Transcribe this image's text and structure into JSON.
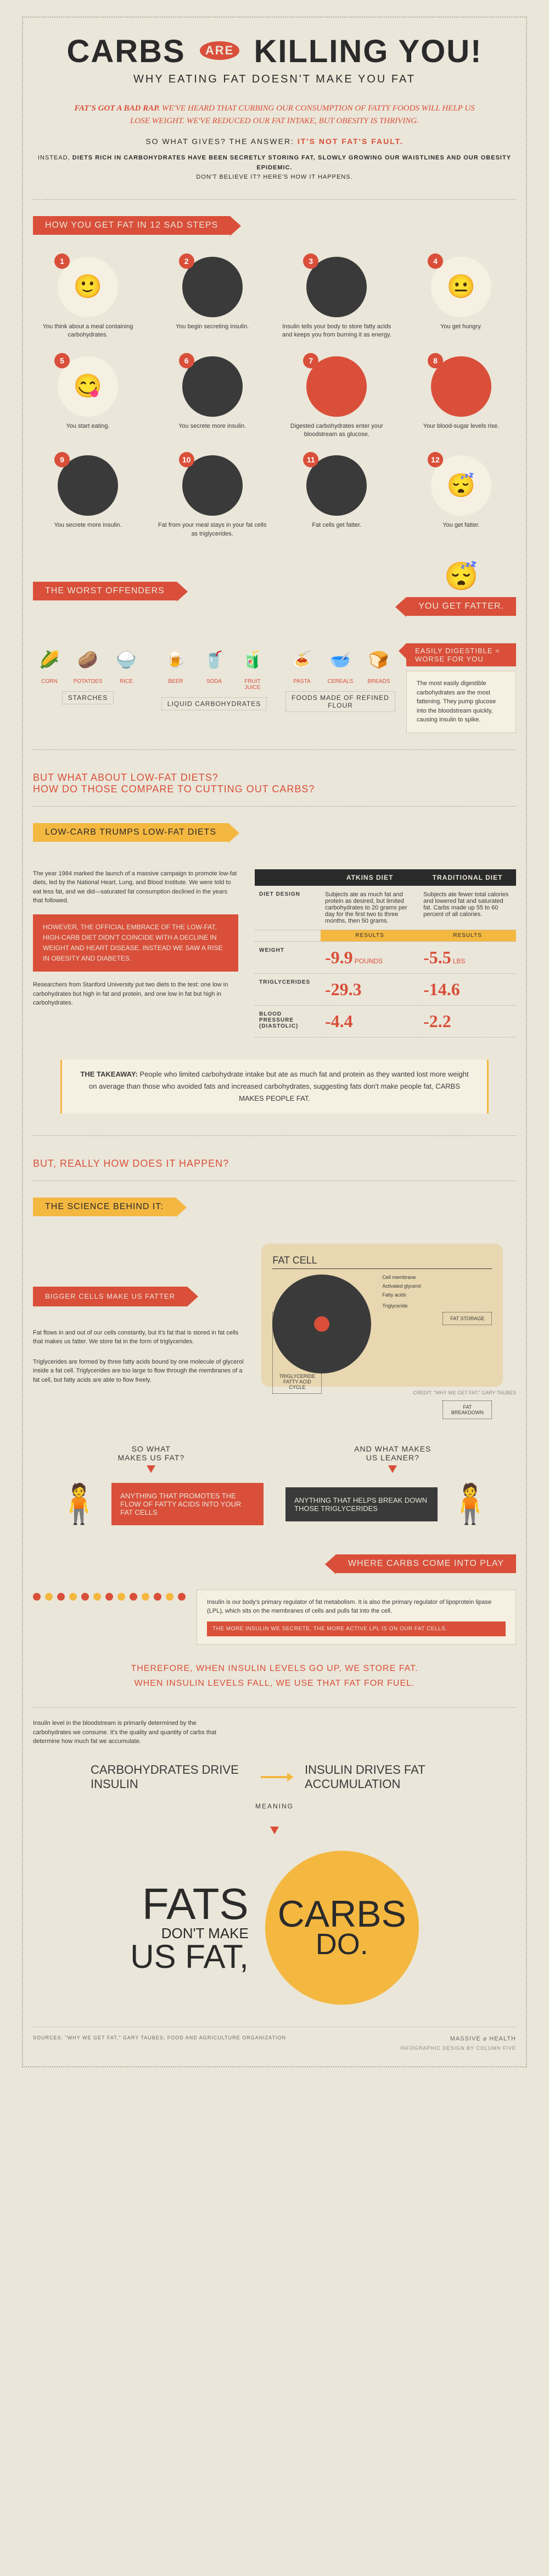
{
  "title": {
    "carbs": "CARBS",
    "are": "ARE",
    "killing": "KILLING YOU!"
  },
  "subtitle": "WHY EATING FAT DOESN'T MAKE YOU FAT",
  "intro": {
    "p1_lead": "FAT'S GOT A BAD RAP.",
    "p1": " WE'VE HEARD THAT CURBING OUR CONSUMPTION OF FATTY FOODS WILL HELP US LOSE WEIGHT. WE'VE REDUCED OUR FAT INTAKE, BUT OBESITY IS THRIVING.",
    "p2a": "SO WHAT GIVES? THE ANSWER: ",
    "p2b": "IT'S NOT FAT'S FAULT.",
    "p3a": "INSTEAD, ",
    "p3b": "DIETS RICH IN CARBOHYDRATES HAVE BEEN SECRETLY STORING FAT, SLOWLY GROWING OUR WAISTLINES AND OUR OBESITY EPIDEMIC.",
    "p3c": "DON'T BELIEVE IT? HERE'S HOW IT HAPPENS."
  },
  "steps_title": "HOW YOU GET FAT IN 12 SAD STEPS",
  "steps": [
    {
      "n": "1",
      "text": "You think about a meal containing carbohydrates.",
      "bg": "#f5f0e1",
      "emoji": "🙂"
    },
    {
      "n": "2",
      "text": "You begin secreting insulin.",
      "bg": "#3a3a3a",
      "emoji": ""
    },
    {
      "n": "3",
      "text": "Insulin tells your body to store fatty acids and keeps you from burning it as energy.",
      "bg": "#3a3a3a",
      "emoji": ""
    },
    {
      "n": "4",
      "text": "You get hungry.",
      "bg": "#f5f0e1",
      "emoji": "😐"
    },
    {
      "n": "5",
      "text": "You start eating.",
      "bg": "#f5f0e1",
      "emoji": "😋"
    },
    {
      "n": "6",
      "text": "You secrete more insulin.",
      "bg": "#3a3a3a",
      "emoji": ""
    },
    {
      "n": "7",
      "text": "Digested carbohydrates enter your bloodstream as glucose.",
      "bg": "#d94f3a",
      "emoji": ""
    },
    {
      "n": "8",
      "text": "Your blood-sugar levels rise.",
      "bg": "#d94f3a",
      "emoji": ""
    },
    {
      "n": "9",
      "text": "You secrete more insulin.",
      "bg": "#3a3a3a",
      "emoji": ""
    },
    {
      "n": "10",
      "text": "Fat from your meal stays in your fat cells as triglycerides.",
      "bg": "#3a3a3a",
      "emoji": ""
    },
    {
      "n": "11",
      "text": "Fat cells get fatter.",
      "bg": "#3a3a3a",
      "emoji": ""
    },
    {
      "n": "12",
      "text": "You get fatter.",
      "bg": "#f5f0e1",
      "emoji": "😴"
    }
  ],
  "offenders_title": "THE WORST OFFENDERS",
  "you_get_fatter": "YOU GET FATTER.",
  "offenders": [
    {
      "label": "STARCHES",
      "items": [
        {
          "name": "CORN",
          "emoji": "🌽"
        },
        {
          "name": "POTATOES",
          "emoji": "🥔"
        },
        {
          "name": "RICE",
          "emoji": "🍚"
        }
      ]
    },
    {
      "label": "LIQUID CARBOHYDRATES",
      "items": [
        {
          "name": "BEER",
          "emoji": "🍺"
        },
        {
          "name": "SODA",
          "emoji": "🥤"
        },
        {
          "name": "FRUIT JUICE",
          "emoji": "🧃"
        }
      ]
    },
    {
      "label": "FOODS MADE OF REFINED FLOUR",
      "items": [
        {
          "name": "PASTA",
          "emoji": "🍝"
        },
        {
          "name": "CEREALS",
          "emoji": "🥣"
        },
        {
          "name": "BREADS",
          "emoji": "🍞"
        }
      ]
    }
  ],
  "digestible": {
    "banner": "EASILY DIGESTIBLE = WORSE FOR YOU",
    "body": "The most easily digestible carbohydrates are the most fattening. They pump glucose into the bloodstream quickly, causing insulin to spike."
  },
  "lowfat_q": "BUT WHAT ABOUT LOW-FAT DIETS?\nHOW DO THOSE COMPARE TO CUTTING OUT CARBS?",
  "trumps_title": "LOW-CARB TRUMPS LOW-FAT DIETS",
  "comp_left": {
    "p1": "The year 1984 marked the launch of a massive campaign to promote low-fat diets, led by the National Heart, Lung, and Blood Institute. We were told to eat less fat, and we did—saturated fat consumption declined in the years that followed.",
    "callout": "HOWEVER, THE OFFICIAL EMBRACE OF THE LOW-FAT, HIGH-CARB DIET DIDN'T COINCIDE WITH A DECLINE IN WEIGHT AND HEART DISEASE. INSTEAD WE SAW A RISE IN OBESITY AND DIABETES.",
    "p2": "Researchers from Stanford University put two diets to the test: one low in carbohydrates but high in fat and protein, and one low in fat but high in carbohydrates."
  },
  "diet_table": {
    "head1": "ATKINS DIET",
    "head2": "TRADITIONAL DIET",
    "design_label": "DIET DESIGN",
    "design1": "Subjects ate as much fat and protein as desired, but limited carbohydrates to 20 grams per day for the first two to three months, then 50 grams.",
    "design2": "Subjects ate fewer total calories and lowered fat and saturated fat. Carbs made up 55 to 60 percent of all calories.",
    "results_label": "RESULTS",
    "rows": [
      {
        "label": "WEIGHT",
        "a_val": "-9.9",
        "a_unit": "POUNDS",
        "b_val": "-5.5",
        "b_unit": "LBS"
      },
      {
        "label": "TRIGLYCERIDES",
        "a_val": "-29.3",
        "a_unit": "",
        "b_val": "-14.6",
        "b_unit": ""
      },
      {
        "label": "BLOOD PRESSURE (DIASTOLIC)",
        "a_val": "-4.4",
        "a_unit": "",
        "b_val": "-2.2",
        "b_unit": ""
      }
    ]
  },
  "takeaway": {
    "lead": "THE TAKEAWAY:",
    "body": " People who limited carbohydrate intake but ate as much fat and protein as they wanted lost more weight on average than those who avoided fats and increased carbohydrates, suggesting fats don't make people fat, CARBS MAKES PEOPLE FAT."
  },
  "how_happen": "BUT, REALLY HOW DOES IT HAPPEN?",
  "science_title": "THE SCIENCE BEHIND IT:",
  "bigger_cells_title": "BIGGER CELLS MAKE US FATTER",
  "fatcell_left": {
    "p1": "Fat flows in and out of our cells constantly, but it's fat that is stored in fat cells that makes us fatter. We store fat in the form of triglycerides.",
    "p2": "Triglycerides are formed by three fatty acids bound by one molecule of glycerol inside a fat cell. Triglycerides are too large to flow through the membranes of a fat cell, but fatty acids are able to flow freely."
  },
  "fatcell": {
    "title": "FAT CELL",
    "labels": {
      "membrane": "Cell membrane",
      "fatty_acids": "Fatty acids",
      "activated": "Activated glycerol",
      "cycle": "TRIGLYCERIDE FATTY ACID CYCLE",
      "triglyceride": "Triglyceride",
      "storage": "FAT STORAGE",
      "breakdown": "FAT BREAKDOWN"
    },
    "credit": "CREDIT: \"WHY WE GET FAT,\" GARY TAUBES"
  },
  "two_q": {
    "a": "SO WHAT\nMAKES US FAT?",
    "b": "AND WHAT MAKES\nUS LEANER?"
  },
  "two_ans": {
    "a": "ANYTHING THAT PROMOTES THE FLOW OF FATTY ACIDS INTO YOUR FAT CELLS",
    "b": "ANYTHING THAT HELPS BREAK DOWN THOSE TRIGLYCERIDES"
  },
  "where_carbs_title": "WHERE CARBS COME INTO PLAY",
  "where_carbs": {
    "body": "Insulin is our body's primary regulator of fat metabolism. It is also the primary regulator of lipoprotein lipase (LPL), which sits on the membranes of cells and pulls fat into the cell.",
    "highlight": "THE MORE INSULIN WE SECRETE, THE MORE ACTIVE LPL IS ON OUR FAT CELLS."
  },
  "dot_colors": [
    "#d94f3a",
    "#f4b841",
    "#d94f3a",
    "#f4b841",
    "#d94f3a",
    "#f4b841",
    "#d94f3a",
    "#f4b841",
    "#d94f3a",
    "#f4b841",
    "#d94f3a",
    "#f4b841",
    "#d94f3a"
  ],
  "therefore": "THEREFORE, WHEN INSULIN LEVELS GO UP, WE STORE FAT.\nWHEN INSULIN LEVELS FALL, WE USE THAT FAT FOR FUEL.",
  "insulin_note": "Insulin level in the bloodstream is primarily determined by the carbohydrates we consume. It's the quality and quantity of carbs that determine how much fat we accumulate.",
  "drive": {
    "a": "CARBOHYDRATES DRIVE INSULIN",
    "b": "INSULIN DRIVES FAT ACCUMULATION"
  },
  "meaning": "MEANING",
  "final": {
    "fats": "FATS",
    "dont": "DON'T MAKE",
    "usfat": "US FAT,",
    "carbs": "CARBS",
    "do": "DO."
  },
  "sources": "SOURCES: \"WHY WE GET FAT,\" GARY TAUBES; FOOD AND AGRICULTURE ORGANIZATION",
  "credit": "INFOGRAPHIC DESIGN BY COLUMN FIVE",
  "logo": "MASSIVE ⌀ HEALTH"
}
